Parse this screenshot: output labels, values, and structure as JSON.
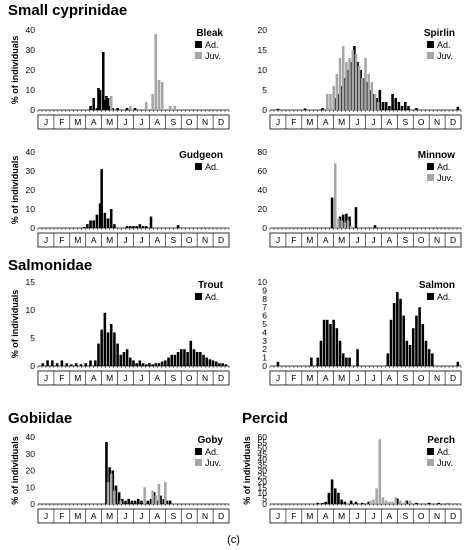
{
  "groups": [
    {
      "title": "Small cyprinidae"
    },
    {
      "title": "Salmonidae"
    },
    {
      "title": "Gobiidae"
    },
    {
      "title": "Percid"
    }
  ],
  "caption": "(c)",
  "colors": {
    "adult": "#000000",
    "juvenile": "#a6a6a6"
  },
  "chart_data": [
    {
      "type": "bar",
      "title": "Bleak",
      "ylabel": "% of individuals",
      "months": [
        "J",
        "F",
        "M",
        "A",
        "M",
        "J",
        "J",
        "A",
        "S",
        "O",
        "N",
        "D"
      ],
      "ylim": [
        0,
        40
      ],
      "yticks": [
        0,
        10,
        20,
        30,
        40
      ],
      "legend": [
        "Ad.",
        "Juv."
      ],
      "series": [
        {
          "name": "Ad.",
          "x": [
            3.3,
            3.5,
            3.7,
            3.8,
            3.9,
            4.1,
            4.2,
            4.3,
            4.4,
            4.5,
            4.7,
            5.0,
            5.6,
            6.1
          ],
          "values": [
            2,
            6,
            1,
            11,
            10,
            29,
            5,
            7,
            6,
            2,
            1,
            1,
            1,
            1
          ]
        },
        {
          "name": "Juv.",
          "x": [
            4.6,
            5.8,
            6.8,
            7.2,
            7.4,
            7.6,
            7.8,
            8.3,
            8.6
          ],
          "values": [
            7,
            2,
            4,
            8,
            38,
            15,
            14,
            2,
            2
          ]
        }
      ]
    },
    {
      "type": "bar",
      "title": "Spirlin",
      "ylabel": "",
      "months": [
        "J",
        "F",
        "M",
        "A",
        "M",
        "J",
        "J",
        "A",
        "S",
        "O",
        "N",
        "D"
      ],
      "ylim": [
        0,
        20
      ],
      "yticks": [
        0,
        5,
        10,
        15,
        20
      ],
      "legend": [
        "Ad.",
        "Juv."
      ],
      "series": [
        {
          "name": "Ad.",
          "x": [
            0.5,
            2.2,
            3.3,
            4.1,
            4.3,
            4.5,
            4.7,
            4.9,
            5.1,
            5.3,
            5.5,
            5.7,
            5.9,
            6.1,
            6.3,
            6.5,
            6.7,
            6.9,
            7.1,
            7.3,
            7.5,
            7.7,
            7.9,
            8.1,
            8.3,
            8.5,
            8.7,
            9.2,
            11.8
          ],
          "values": [
            0.3,
            0.4,
            0.5,
            3,
            4,
            6,
            8,
            10,
            12,
            16,
            12,
            10,
            8,
            7,
            5,
            4,
            3,
            5,
            2,
            2,
            1,
            4,
            3,
            2,
            1,
            2,
            1,
            0.5,
            0.8
          ]
        },
        {
          "name": "Juv.",
          "x": [
            3.6,
            3.8,
            4.0,
            4.2,
            4.4,
            4.6,
            4.8,
            5.0,
            5.2,
            5.4,
            5.6,
            5.8,
            6.0,
            6.2,
            6.4,
            6.6,
            6.8
          ],
          "values": [
            4,
            4,
            6,
            9,
            13,
            16,
            12,
            13,
            15,
            14,
            11,
            8,
            13,
            9,
            7,
            4,
            2
          ]
        }
      ]
    },
    {
      "type": "bar",
      "title": "Gudgeon",
      "ylabel": "% of individuals",
      "months": [
        "J",
        "F",
        "M",
        "A",
        "M",
        "J",
        "J",
        "A",
        "S",
        "O",
        "N",
        "D"
      ],
      "ylim": [
        0,
        40
      ],
      "yticks": [
        0,
        10,
        20,
        30,
        40
      ],
      "legend": [
        "Ad."
      ],
      "series": [
        {
          "name": "Ad.",
          "x": [
            2.9,
            3.1,
            3.3,
            3.5,
            3.7,
            3.9,
            4.0,
            4.2,
            4.4,
            4.6,
            4.8,
            5.6,
            5.8,
            6.0,
            6.2,
            6.4,
            6.6,
            6.8,
            7.1,
            8.8
          ],
          "values": [
            0.5,
            2,
            4,
            4,
            7,
            13,
            31,
            8,
            5,
            10,
            2,
            1,
            1,
            1,
            1,
            2,
            1,
            1,
            6,
            1.5
          ]
        }
      ]
    },
    {
      "type": "bar",
      "title": "Minnow",
      "ylabel": "",
      "months": [
        "J",
        "F",
        "M",
        "A",
        "M",
        "J",
        "J",
        "A",
        "S",
        "O",
        "N",
        "D"
      ],
      "ylim": [
        0,
        80
      ],
      "yticks": [
        0,
        20,
        40,
        60,
        80
      ],
      "legend": [
        "Ad.",
        "Juv."
      ],
      "series": [
        {
          "name": "Ad.",
          "x": [
            3.9,
            4.4,
            4.6,
            4.8,
            5.0,
            5.4,
            6.6
          ],
          "values": [
            32,
            12,
            14,
            15,
            12,
            22,
            3
          ]
        },
        {
          "name": "Juv.",
          "x": [
            4.1,
            4.3,
            4.5,
            4.7,
            4.9,
            5.1
          ],
          "values": [
            68,
            10,
            8,
            6,
            8,
            2
          ]
        }
      ]
    },
    {
      "type": "bar",
      "title": "Trout",
      "ylabel": "% of individuals",
      "months": [
        "J",
        "F",
        "M",
        "A",
        "M",
        "J",
        "J",
        "A",
        "S",
        "O",
        "N",
        "D"
      ],
      "ylim": [
        0,
        15
      ],
      "yticks": [
        0,
        5,
        10,
        15
      ],
      "legend": [
        "Ad."
      ],
      "series": [
        {
          "name": "Ad.",
          "x": [
            0.3,
            0.6,
            0.9,
            1.2,
            1.5,
            1.8,
            2.1,
            2.4,
            2.7,
            3.0,
            3.3,
            3.6,
            3.8,
            4.0,
            4.2,
            4.4,
            4.6,
            4.8,
            5.0,
            5.2,
            5.4,
            5.6,
            5.8,
            6.0,
            6.2,
            6.4,
            6.6,
            6.8,
            7.0,
            7.2,
            7.4,
            7.6,
            7.8,
            8.0,
            8.2,
            8.4,
            8.6,
            8.8,
            9.0,
            9.2,
            9.4,
            9.6,
            9.8,
            10.0,
            10.2,
            10.4,
            10.6,
            10.8,
            11.0,
            11.2,
            11.4,
            11.6,
            11.8
          ],
          "values": [
            0.5,
            1,
            1,
            0.5,
            1,
            0.5,
            0.3,
            0.5,
            0.3,
            0.5,
            1,
            1,
            4,
            6.5,
            9.5,
            6,
            7.5,
            6,
            4,
            2,
            2.5,
            3,
            1.5,
            1,
            0.5,
            1,
            0.5,
            0.3,
            0.5,
            0.3,
            0.5,
            0.5,
            0.8,
            1,
            1.5,
            2,
            2,
            2.5,
            3,
            3,
            2.5,
            4.5,
            3,
            2.5,
            2.5,
            2,
            1.5,
            1.2,
            1,
            0.8,
            0.5,
            0.5,
            0.3
          ]
        }
      ]
    },
    {
      "type": "bar",
      "title": "Salmon",
      "ylabel": "",
      "months": [
        "J",
        "F",
        "M",
        "A",
        "M",
        "J",
        "J",
        "A",
        "S",
        "O",
        "N",
        "D"
      ],
      "ylim": [
        0,
        10
      ],
      "yticks": [
        0,
        1,
        2,
        3,
        4,
        5,
        6,
        7,
        8,
        9,
        10
      ],
      "legend": [
        "Ad."
      ],
      "series": [
        {
          "name": "Ad.",
          "x": [
            0.5,
            2.6,
            3.0,
            3.2,
            3.4,
            3.6,
            3.8,
            4.0,
            4.2,
            4.4,
            4.6,
            4.8,
            5.0,
            5.5,
            7.4,
            7.6,
            7.8,
            8.0,
            8.2,
            8.4,
            8.6,
            8.8,
            9.0,
            9.2,
            9.4,
            9.6,
            9.8,
            10.0,
            10.2,
            11.8
          ],
          "values": [
            0.5,
            1,
            1,
            3,
            5.5,
            5.5,
            5,
            5.5,
            4.5,
            3,
            1.5,
            1,
            1,
            2,
            1.5,
            5.5,
            7.5,
            8.8,
            8,
            6,
            3,
            2.5,
            4.5,
            6,
            7,
            5,
            3,
            2,
            1.5,
            0.5
          ]
        }
      ]
    },
    {
      "type": "bar",
      "title": "Goby",
      "ylabel": "% of individuals",
      "months": [
        "J",
        "F",
        "M",
        "A",
        "M",
        "J",
        "J",
        "A",
        "S",
        "O",
        "N",
        "D"
      ],
      "ylim": [
        0,
        40
      ],
      "yticks": [
        0,
        10,
        20,
        30,
        40
      ],
      "legend": [
        "Ad.",
        "Juv."
      ],
      "series": [
        {
          "name": "Ad.",
          "x": [
            4.3,
            4.5,
            4.7,
            4.9,
            5.1,
            5.3,
            5.5,
            5.7,
            5.9,
            6.1,
            6.3,
            6.5,
            6.7,
            6.9,
            7.1,
            7.3,
            7.5,
            7.7,
            7.9,
            8.1,
            8.3
          ],
          "values": [
            37,
            22,
            20,
            11,
            7,
            3,
            2,
            3,
            2,
            2,
            3,
            2,
            1,
            2,
            3,
            7,
            2,
            5,
            3,
            2,
            2
          ]
        },
        {
          "name": "Juv.",
          "x": [
            4.4,
            4.6,
            4.8,
            5.2,
            6.7,
            7.2,
            7.4,
            7.6,
            8.0
          ],
          "values": [
            13,
            18,
            8,
            2,
            10,
            8,
            5,
            12,
            13
          ]
        }
      ]
    },
    {
      "type": "bar",
      "title": "Perch",
      "ylabel": "% of individuals",
      "months": [
        "J",
        "F",
        "M",
        "A",
        "M",
        "J",
        "J",
        "A",
        "S",
        "O",
        "N",
        "D"
      ],
      "ylim": [
        0,
        60
      ],
      "yticks": [
        0,
        5,
        10,
        15,
        20,
        25,
        30,
        35,
        40,
        45,
        50,
        55,
        60
      ],
      "legend": [
        "Ad.",
        "Juv."
      ],
      "series": [
        {
          "name": "Ad.",
          "x": [
            3.0,
            3.3,
            3.5,
            3.7,
            3.9,
            4.1,
            4.3,
            4.5,
            4.7,
            5.1,
            5.4,
            5.8,
            6.2,
            8.0,
            8.6,
            9.2,
            10.0,
            10.6,
            11.2
          ],
          "values": [
            1,
            1,
            2,
            10,
            22,
            14,
            10,
            4,
            2,
            3,
            2,
            1,
            2,
            5,
            3,
            1,
            1,
            1,
            0.5
          ]
        },
        {
          "name": "Juv.",
          "x": [
            2.7,
            6.3,
            6.5,
            6.7,
            6.9,
            7.1,
            7.3,
            7.5,
            7.7,
            7.9,
            8.2,
            8.5,
            8.8
          ],
          "values": [
            1,
            3,
            4,
            14,
            58,
            6,
            3,
            2,
            2,
            6,
            3,
            2,
            3
          ]
        }
      ]
    }
  ]
}
